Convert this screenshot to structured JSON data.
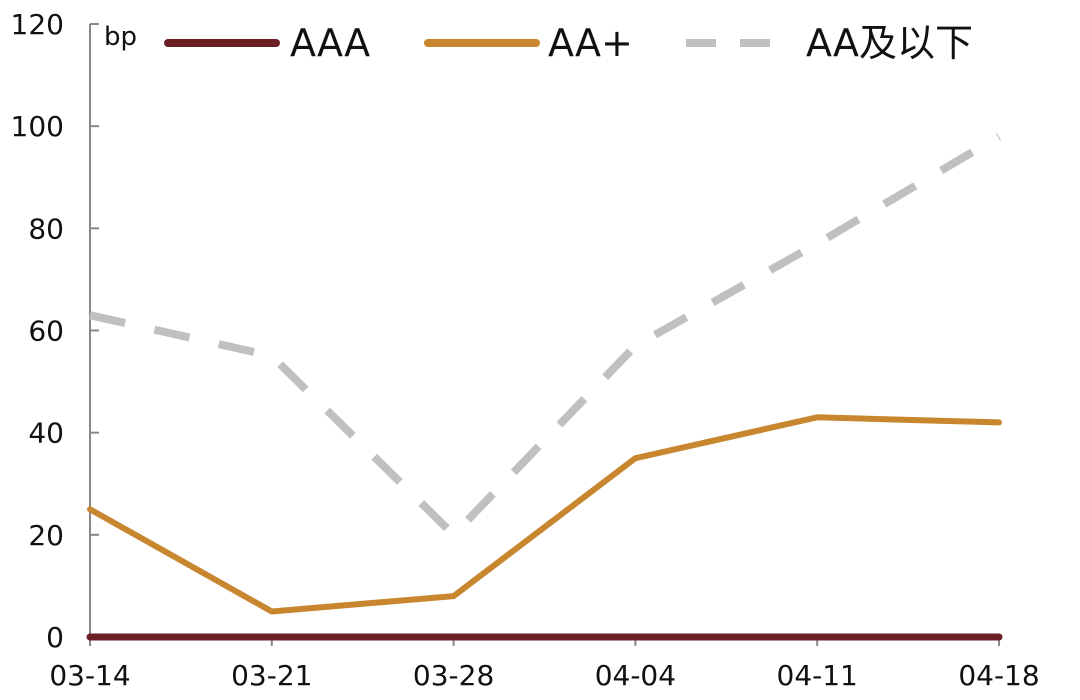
{
  "chart_data": {
    "type": "line",
    "unit": "bp",
    "categories": [
      "03-14",
      "03-21",
      "03-28",
      "04-04",
      "04-11",
      "04-18"
    ],
    "yticks": [
      "0",
      "20",
      "40",
      "60",
      "80",
      "100",
      "120"
    ],
    "ylim": [
      0,
      120
    ],
    "grid": false,
    "legend_position": "top",
    "series": [
      {
        "name": "AAA",
        "color": "#6b1f24",
        "style": "solid",
        "values": [
          0,
          0,
          0,
          0,
          0,
          0
        ]
      },
      {
        "name": "AA+",
        "color": "#c8862e",
        "style": "solid",
        "values": [
          25,
          5,
          8,
          35,
          43,
          42
        ]
      },
      {
        "name": "AA及以下",
        "color": "#c0c0c0",
        "style": "dashed",
        "values": [
          63,
          55,
          20,
          57,
          77,
          98
        ]
      }
    ]
  }
}
